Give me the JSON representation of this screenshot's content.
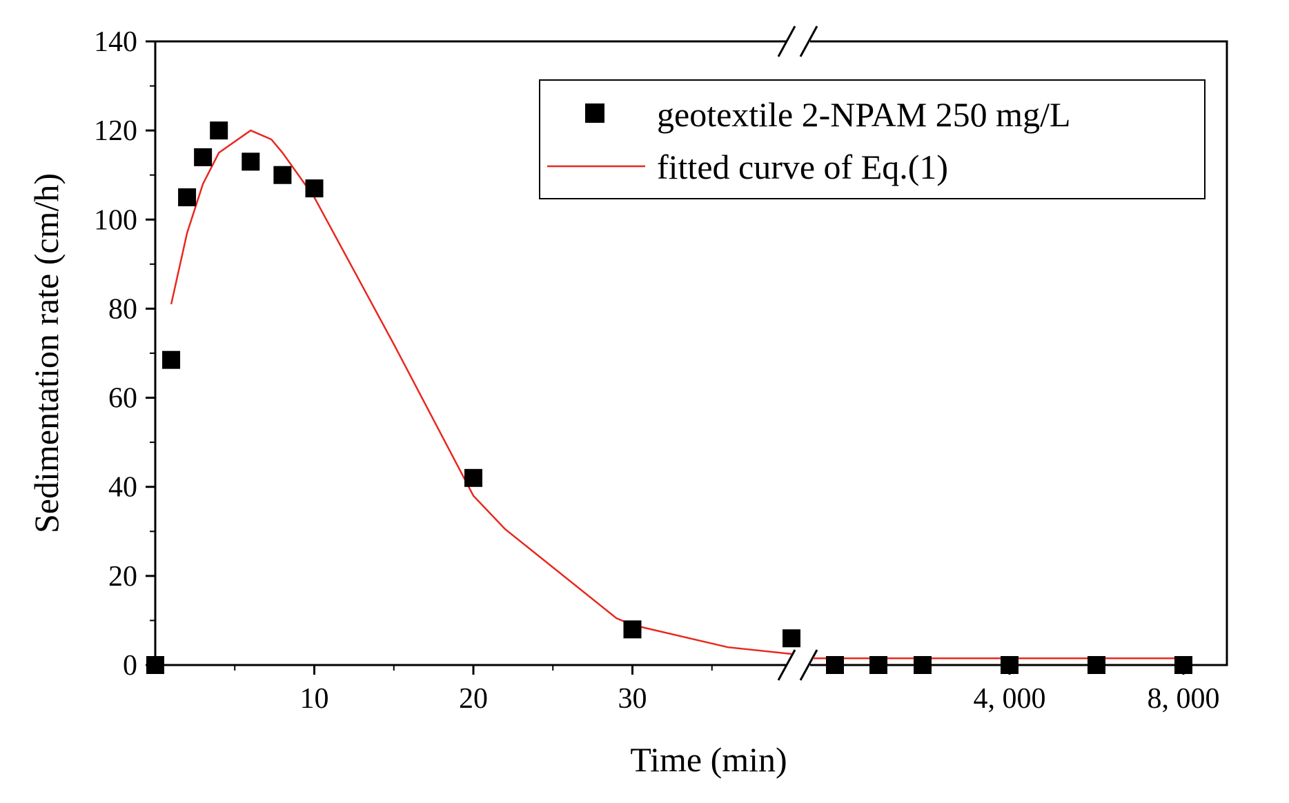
{
  "chart_data": {
    "type": "scatter",
    "title": "",
    "xlabel": "Time (min)",
    "ylabel": "Sedimentation rate (cm/h)",
    "ylim": [
      0,
      140
    ],
    "yticks": [
      0,
      20,
      40,
      60,
      80,
      100,
      120,
      140
    ],
    "x_axis_broken": true,
    "x_segments": [
      {
        "name": "linear",
        "range": [
          0,
          40
        ],
        "tick_labels": [
          "10",
          "20",
          "30"
        ],
        "tick_values": [
          10,
          20,
          30
        ]
      },
      {
        "name": "extended",
        "range": [
          400,
          8000
        ],
        "tick_labels": [
          "4, 000",
          "8, 000"
        ],
        "tick_values": [
          4000,
          8000
        ]
      }
    ],
    "series": [
      {
        "name": "geotextile 2-NPAM 250 mg/L",
        "kind": "scatter",
        "color": "#000000",
        "points": [
          {
            "x": 0,
            "y": 0
          },
          {
            "x": 1,
            "y": 68.5
          },
          {
            "x": 2,
            "y": 105
          },
          {
            "x": 3,
            "y": 114
          },
          {
            "x": 4,
            "y": 120
          },
          {
            "x": 6,
            "y": 113
          },
          {
            "x": 8,
            "y": 110
          },
          {
            "x": 10,
            "y": 107
          },
          {
            "x": 20,
            "y": 42
          },
          {
            "x": 30,
            "y": 8
          },
          {
            "x": 40,
            "y": 6
          },
          {
            "x": 1000,
            "y": 0
          },
          {
            "x": 2000,
            "y": 0
          },
          {
            "x": 3000,
            "y": 0
          },
          {
            "x": 4000,
            "y": 0
          },
          {
            "x": 6000,
            "y": 0
          },
          {
            "x": 8000,
            "y": 0
          }
        ]
      },
      {
        "name": "fitted curve of Eq.(1)",
        "kind": "line",
        "color": "#e8281e",
        "points": [
          {
            "x": 1,
            "y": 81
          },
          {
            "x": 2,
            "y": 97
          },
          {
            "x": 3,
            "y": 108
          },
          {
            "x": 4,
            "y": 115
          },
          {
            "x": 6,
            "y": 120
          },
          {
            "x": 7.3,
            "y": 118
          },
          {
            "x": 8,
            "y": 115
          },
          {
            "x": 10,
            "y": 105
          },
          {
            "x": 15,
            "y": 72
          },
          {
            "x": 20,
            "y": 38
          },
          {
            "x": 22,
            "y": 30.5
          },
          {
            "x": 29,
            "y": 10.5
          },
          {
            "x": 30,
            "y": 9
          },
          {
            "x": 36,
            "y": 4
          },
          {
            "x": 40,
            "y": 2.5
          },
          {
            "x": 400,
            "y": 1.5
          },
          {
            "x": 8000,
            "y": 1.5
          }
        ]
      }
    ],
    "legend": {
      "position": "top-right",
      "entries": [
        {
          "label": "geotextile 2-NPAM 250 mg/L",
          "marker": "square"
        },
        {
          "label": "fitted curve of Eq.(1)",
          "marker": "line"
        }
      ]
    }
  }
}
